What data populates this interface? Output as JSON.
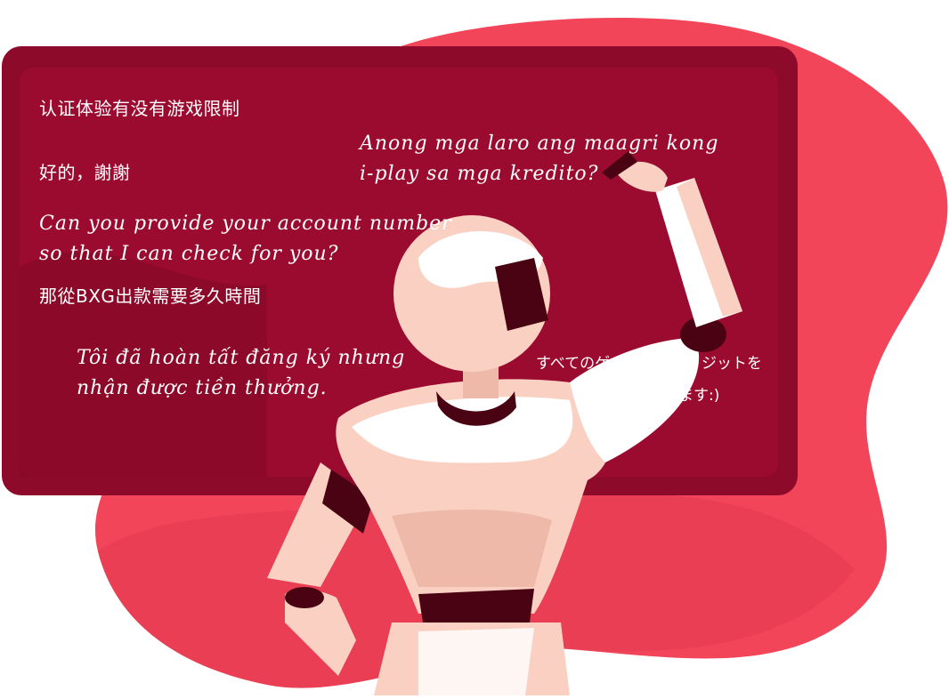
{
  "colors": {
    "blob": "#f2455a",
    "board": "#8e0a2a",
    "board_inner": "#9b0b2f",
    "robot_light": "#f9d0c2",
    "robot_mid": "#eeb9a8",
    "robot_dark": "#4a0312",
    "text": "#ffffff"
  },
  "board": {
    "lines": {
      "l1": "认证体验有没有游戏限制",
      "l2": "好的，謝謝",
      "l3a": "Can you provide your account number",
      "l3b": "so that I can check for you?",
      "l4": "那從BXG出款需要多久時間",
      "l5a": "Anong mga laro ang maagri kong",
      "l5b": "i-play sa mga kredito?",
      "l6a": "Tôi đã hoàn tất đăng ký nhưng",
      "l6b": "nhận được tiền thưởng.",
      "l7a": "すべてのゲ",
      "l7b": "ジットを",
      "l7c": "ます:)"
    }
  }
}
